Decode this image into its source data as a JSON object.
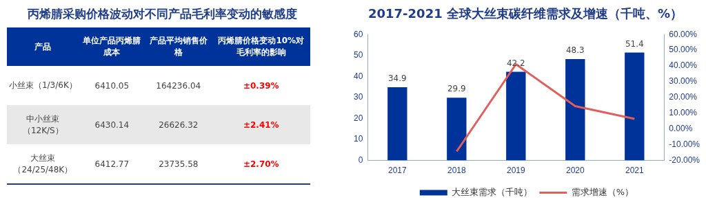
{
  "chart_data": [
    {
      "type": "other",
      "title": "丙烯腈采购价格波动对不同产品毛利率变动的敏感度",
      "categories": [
        "产品",
        "单位产品丙烯腈成本",
        "产品平均销售价格",
        "丙烯腈价格变动10%对毛利率的影响"
      ],
      "y_categories": [
        "小丝束（1/3/6K）",
        "中小丝束（12K/S）",
        "大丝束（24/25/48K）"
      ],
      "cell_labels": [
        [
          "6410.05",
          "164236.04",
          "±0.39%"
        ],
        [
          "6430.14",
          "26626.32",
          "±2.41%"
        ],
        [
          "6412.77",
          "23735.58",
          "±2.70%"
        ]
      ]
    },
    {
      "type": "bar",
      "title": "2017-2021 全球大丝束碳纤维需求及增速（千吨、%）",
      "categories": [
        "2017",
        "2018",
        "2019",
        "2020",
        "2021"
      ],
      "series": [
        {
          "name": "大丝束需求（千吨）",
          "color": "#003399",
          "values": [
            34.9,
            29.9,
            42.2,
            48.3,
            51.4
          ],
          "value_labels": [
            "34.9",
            "29.9",
            "42.2",
            "48.3",
            "51.4"
          ]
        },
        {
          "name": "需求增速（%）",
          "type": "line",
          "axis": "y2",
          "color": "#e45c5c",
          "values": [
            null,
            -14.3,
            41.1,
            14.5,
            6.4
          ]
        }
      ],
      "ylim": [
        0,
        60
      ],
      "yticks": [
        0,
        10,
        20,
        30,
        40,
        50,
        60
      ],
      "y2lim": [
        -20,
        60
      ],
      "y2ticks": [
        {
          "value": -20,
          "label": "-20.00%"
        },
        {
          "value": -10,
          "label": "-10.00%"
        },
        {
          "value": 0,
          "label": "0.00%"
        },
        {
          "value": 10,
          "label": "10.00%"
        },
        {
          "value": 20,
          "label": "20.00%"
        },
        {
          "value": 30,
          "label": "30.00%"
        },
        {
          "value": 40,
          "label": "40.00%"
        },
        {
          "value": 50,
          "label": "50.00%"
        },
        {
          "value": 60,
          "label": "60.00%"
        }
      ],
      "grid": false,
      "legend": "bottom",
      "marker": "none",
      "line_style": "solid"
    }
  ]
}
